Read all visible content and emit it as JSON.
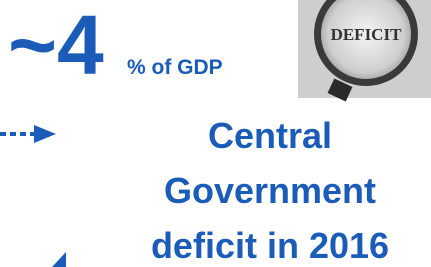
{
  "headline": {
    "value": "~4",
    "unit": "% of GDP"
  },
  "image": {
    "label": "DEFICIT"
  },
  "caption": {
    "lines": [
      "Central",
      "Government",
      "deficit in 2016"
    ]
  }
}
